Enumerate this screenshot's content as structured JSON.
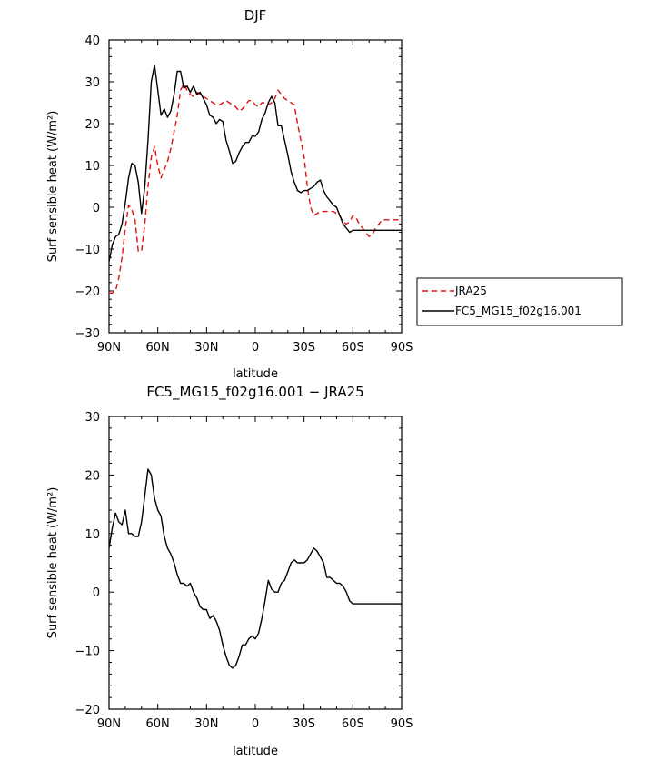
{
  "chart_data": [
    {
      "type": "line",
      "title": "DJF",
      "xlabel": "latitude",
      "ylabel": "Surf sensible heat (W/m²)",
      "xlim": [
        -90,
        90
      ],
      "ylim": [
        -30,
        40
      ],
      "x_ticks": [
        -90,
        -60,
        -30,
        0,
        30,
        60,
        90
      ],
      "x_tick_labels": [
        "90N",
        "60N",
        "30N",
        "0",
        "30S",
        "60S",
        "90S"
      ],
      "y_ticks": [
        -30,
        -20,
        -10,
        0,
        10,
        20,
        30,
        40
      ],
      "y_tick_labels": [
        "−30",
        "−20",
        "−10",
        "0",
        "10",
        "20",
        "30",
        "40"
      ],
      "legend_placement": "right-outside",
      "series": [
        {
          "name": "JRA25",
          "color": "#e01010",
          "dash": true,
          "x": [
            -90,
            -88,
            -86,
            -84,
            -82,
            -80,
            -78,
            -76,
            -74,
            -72,
            -70,
            -68,
            -66,
            -64,
            -62,
            -60,
            -58,
            -56,
            -54,
            -52,
            -50,
            -48,
            -46,
            -44,
            -42,
            -40,
            -38,
            -36,
            -34,
            -32,
            -30,
            -28,
            -26,
            -24,
            -22,
            -20,
            -18,
            -16,
            -14,
            -12,
            -10,
            -8,
            -6,
            -4,
            -2,
            0,
            2,
            4,
            6,
            8,
            10,
            12,
            14,
            16,
            18,
            20,
            22,
            24,
            26,
            28,
            30,
            32,
            34,
            36,
            38,
            40,
            42,
            44,
            46,
            48,
            50,
            52,
            54,
            56,
            58,
            60,
            62,
            64,
            66,
            68,
            70,
            72,
            74,
            76,
            78,
            80,
            82,
            84,
            86,
            88,
            90
          ],
          "y": [
            -20.5,
            -20.5,
            -20,
            -17,
            -12,
            -5,
            0.5,
            -0.5,
            -3,
            -10.5,
            -10.5,
            -4,
            5,
            12,
            14.5,
            10,
            7,
            9,
            11,
            14,
            18,
            22,
            28,
            29.5,
            28,
            27,
            26.5,
            27.5,
            27,
            26.5,
            26,
            25.5,
            25,
            24.5,
            24.5,
            25,
            25.5,
            25,
            24.5,
            24,
            23,
            23.5,
            24.5,
            25.5,
            25.5,
            24.5,
            24,
            25,
            25,
            24.5,
            25,
            26,
            28,
            27,
            26,
            25.5,
            25,
            24.5,
            20,
            16,
            12,
            5,
            0,
            -2,
            -1.5,
            -1,
            -1,
            -1,
            -1,
            -1,
            -1.5,
            -2,
            -3.5,
            -4,
            -3.5,
            -2,
            -2.5,
            -4,
            -5,
            -6,
            -7,
            -6.5,
            -5,
            -4,
            -3,
            -3,
            -3,
            -3,
            -3,
            -3,
            -3
          ]
        },
        {
          "name": "FC5_MG15_f02g16.001",
          "color": "#000000",
          "dash": false,
          "x": [
            -90,
            -88,
            -86,
            -84,
            -82,
            -80,
            -78,
            -76,
            -74,
            -72,
            -70,
            -68,
            -66,
            -64,
            -62,
            -60,
            -58,
            -56,
            -54,
            -52,
            -50,
            -48,
            -46,
            -44,
            -42,
            -40,
            -38,
            -36,
            -34,
            -32,
            -30,
            -28,
            -26,
            -24,
            -22,
            -20,
            -18,
            -16,
            -14,
            -12,
            -10,
            -8,
            -6,
            -4,
            -2,
            0,
            2,
            4,
            6,
            8,
            10,
            12,
            14,
            16,
            18,
            20,
            22,
            24,
            26,
            28,
            30,
            32,
            34,
            36,
            38,
            40,
            42,
            44,
            46,
            48,
            50,
            52,
            54,
            56,
            58,
            60,
            62,
            64,
            66,
            68,
            70,
            72,
            74,
            76,
            78,
            80,
            82,
            84,
            86,
            88,
            90
          ],
          "y": [
            -13,
            -9,
            -7,
            -6.5,
            -4,
            1,
            7,
            10.5,
            10,
            6,
            -1.5,
            5,
            16,
            30,
            34,
            28,
            22,
            23.5,
            21.5,
            23,
            27,
            32.5,
            32.5,
            28.5,
            29,
            27.5,
            29,
            27,
            27.5,
            26,
            24.5,
            22,
            21.5,
            20,
            21,
            20.5,
            16,
            13.5,
            10.5,
            11,
            13,
            14.5,
            15.5,
            15.5,
            17,
            17,
            18,
            21,
            22.5,
            25,
            26.5,
            25,
            19.5,
            19.5,
            16,
            12.5,
            8.5,
            6,
            4,
            3.5,
            4,
            4,
            4.5,
            5,
            6,
            6.5,
            4,
            2.5,
            1.5,
            0.5,
            0,
            -2,
            -4,
            -5,
            -6,
            -5.5,
            -5.5,
            -5.5,
            -5.5,
            -5.5,
            -5.5,
            -5.5,
            -5.5,
            -5.5,
            -5.5,
            -5.5,
            -5.5,
            -5.5,
            -5.5,
            -5.5,
            -5.5
          ]
        }
      ]
    },
    {
      "type": "line",
      "title": "FC5_MG15_f02g16.001 − JRA25",
      "xlabel": "latitude",
      "ylabel": "Surf sensible heat (W/m²)",
      "xlim": [
        -90,
        90
      ],
      "ylim": [
        -20,
        30
      ],
      "x_ticks": [
        -90,
        -60,
        -30,
        0,
        30,
        60,
        90
      ],
      "x_tick_labels": [
        "90N",
        "60N",
        "30N",
        "0",
        "30S",
        "60S",
        "90S"
      ],
      "y_ticks": [
        -20,
        -10,
        0,
        10,
        20,
        30
      ],
      "y_tick_labels": [
        "−20",
        "−10",
        "0",
        "10",
        "20",
        "30"
      ],
      "series": [
        {
          "name": "FC5_MG15_f02g16.001 − JRA25",
          "color": "#000000",
          "dash": false,
          "x": [
            -90,
            -88,
            -86,
            -84,
            -82,
            -80,
            -78,
            -76,
            -74,
            -72,
            -70,
            -68,
            -66,
            -64,
            -62,
            -60,
            -58,
            -56,
            -54,
            -52,
            -50,
            -48,
            -46,
            -44,
            -42,
            -40,
            -38,
            -36,
            -34,
            -32,
            -30,
            -28,
            -26,
            -24,
            -22,
            -20,
            -18,
            -16,
            -14,
            -12,
            -10,
            -8,
            -6,
            -4,
            -2,
            0,
            2,
            4,
            6,
            8,
            10,
            12,
            14,
            16,
            18,
            20,
            22,
            24,
            26,
            28,
            30,
            32,
            34,
            36,
            38,
            40,
            42,
            44,
            46,
            48,
            50,
            52,
            54,
            56,
            58,
            60,
            62,
            64,
            66,
            68,
            70,
            72,
            74,
            76,
            78,
            80,
            82,
            84,
            86,
            88,
            90
          ],
          "y": [
            7.5,
            11,
            13.5,
            12,
            11.5,
            14,
            10,
            10,
            9.5,
            9.5,
            12,
            16.5,
            21,
            20,
            16,
            14,
            13,
            9.5,
            7.5,
            6.5,
            5,
            3,
            1.5,
            1.5,
            1,
            1.5,
            0,
            -1,
            -2.5,
            -3,
            -3,
            -4.5,
            -4,
            -5,
            -6.5,
            -9,
            -11,
            -12.5,
            -13,
            -12.5,
            -11,
            -9,
            -9,
            -8,
            -7.5,
            -8,
            -7,
            -4.5,
            -1.5,
            2,
            0.5,
            0,
            0,
            1.5,
            2,
            3.5,
            5,
            5.5,
            5,
            5,
            5,
            5.5,
            6.5,
            7.5,
            7,
            6,
            5,
            2.5,
            2.5,
            2,
            1.5,
            1.5,
            1,
            0,
            -1.5,
            -2,
            -2,
            -2,
            -2,
            -2,
            -2,
            -2,
            -2,
            -2,
            -2,
            -2,
            -2,
            -2,
            -2,
            -2,
            -2
          ]
        }
      ]
    }
  ]
}
